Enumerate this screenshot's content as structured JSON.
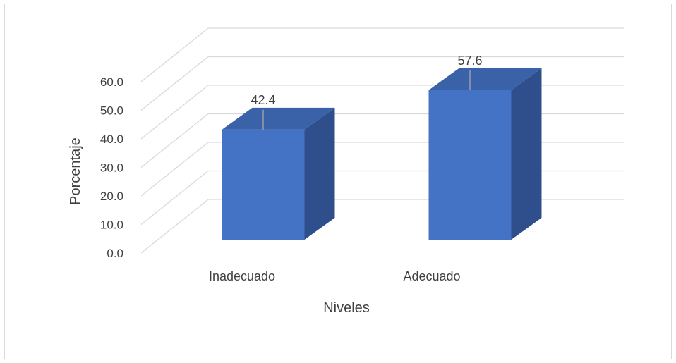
{
  "chart_data": {
    "type": "bar",
    "style": "3d-column",
    "categories": [
      "Inadecuado",
      "Adecuado"
    ],
    "values": [
      42.4,
      57.6
    ],
    "data_labels": [
      "42.4",
      "57.6"
    ],
    "title": "",
    "xlabel": "Niveles",
    "ylabel": "Porcentaje",
    "ylim": [
      0,
      60
    ],
    "yticks": [
      0,
      10,
      20,
      30,
      40,
      50,
      60
    ],
    "ytick_labels": [
      "0.0",
      "10.0",
      "20.0",
      "30.0",
      "40.0",
      "50.0",
      "60.0"
    ],
    "grid": true,
    "legend": "none",
    "colors": {
      "bar_front": "#4472c4",
      "bar_side": "#2f4f8c",
      "bar_top": "#3a62a8",
      "gridline": "#d9d9d9",
      "text": "#404040"
    }
  }
}
